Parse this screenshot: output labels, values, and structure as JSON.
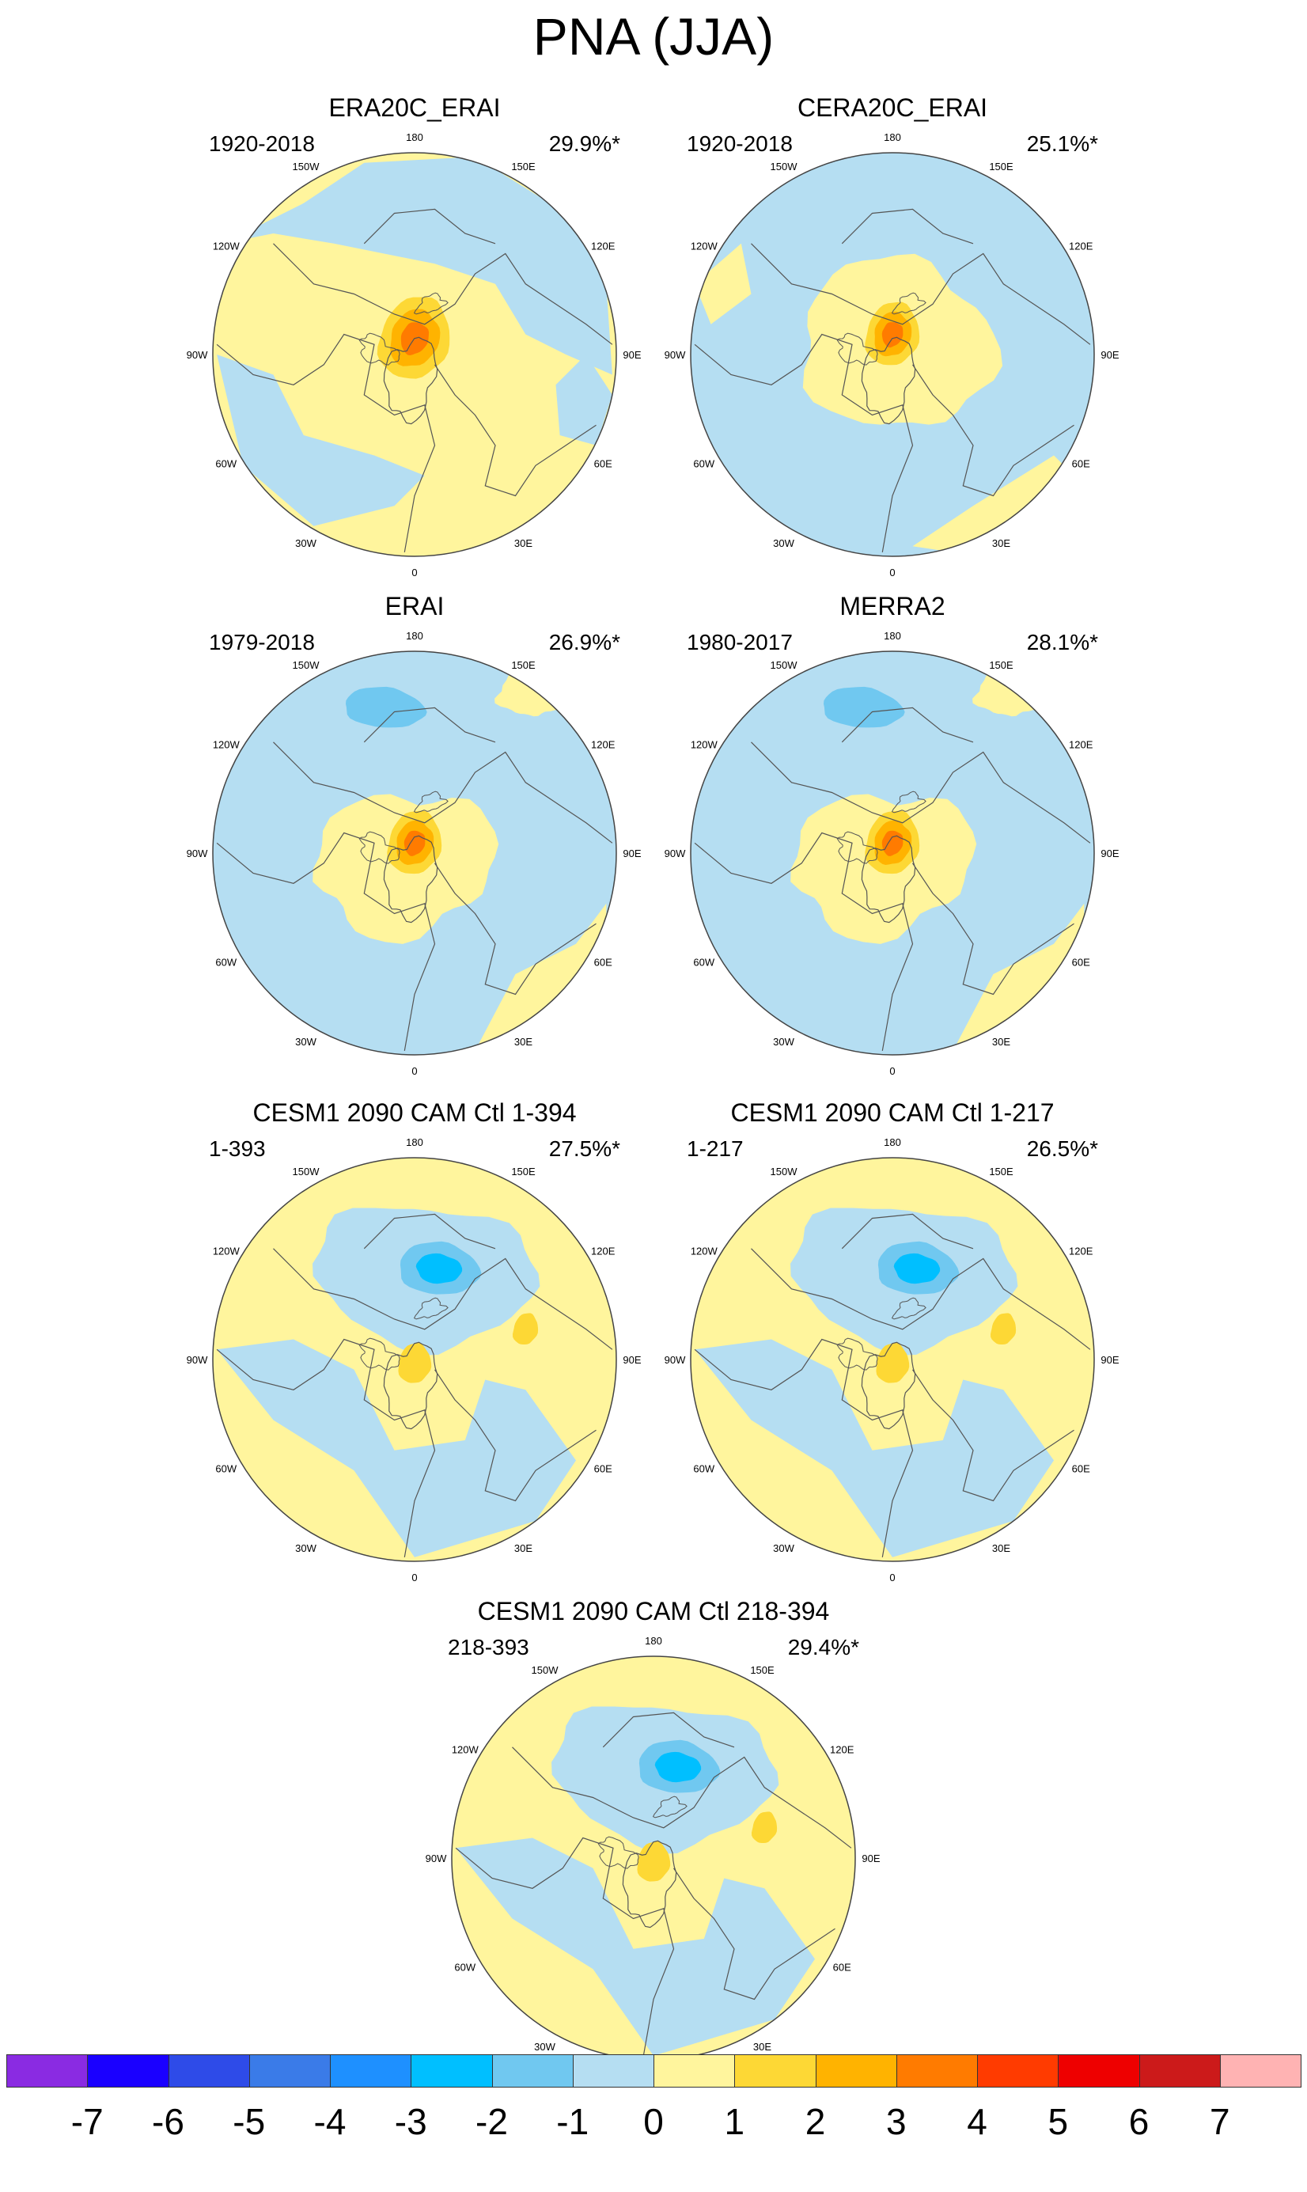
{
  "title": "PNA (JJA)",
  "colors": {
    "land_coast": "#555555",
    "boundary": "#444444",
    "levels": {
      "n4": "#3a7be8",
      "n3": "#00bfff",
      "n2": "#70c8f0",
      "n1": "#b5def2",
      "p1": "#fff59d",
      "p2": "#fdd835",
      "p3": "#ffb300",
      "p4": "#ff7b00",
      "p5": "#ff3b00"
    }
  },
  "longitude_labels": [
    "180",
    "150E",
    "120E",
    "90E",
    "60E",
    "30E",
    "0",
    "30W",
    "60W",
    "90W",
    "120W",
    "150W"
  ],
  "panels": [
    {
      "title": "ERA20C_ERAI",
      "period": "1920-2018",
      "variance": "29.9%*",
      "pattern": "A"
    },
    {
      "title": "CERA20C_ERAI",
      "period": "1920-2018",
      "variance": "25.1%*",
      "pattern": "B"
    },
    {
      "title": "ERAI",
      "period": "1979-2018",
      "variance": "26.9%*",
      "pattern": "C"
    },
    {
      "title": "MERRA2",
      "period": "1980-2017",
      "variance": "28.1%*",
      "pattern": "C"
    },
    {
      "title": "CESM1 2090 CAM Ctl 1-394",
      "period": "1-393",
      "variance": "27.5%*",
      "pattern": "D"
    },
    {
      "title": "CESM1 2090 CAM Ctl 1-217",
      "period": "1-217",
      "variance": "26.5%*",
      "pattern": "D"
    },
    {
      "title": "CESM1 2090 CAM Ctl 218-394",
      "period": "218-393",
      "variance": "29.4%*",
      "pattern": "D"
    }
  ],
  "colorbar": {
    "boxes": [
      "#8a2be2",
      "#1a00ff",
      "#2e4be8",
      "#3a7be8",
      "#1e90ff",
      "#00bfff",
      "#70c8f0",
      "#b5def2",
      "#fff59d",
      "#fdd835",
      "#ffb300",
      "#ff7b00",
      "#ff3b00",
      "#ee0000",
      "#cc1a1a",
      "#ffb3b3"
    ],
    "labels": [
      "-7",
      "-6",
      "-5",
      "-4",
      "-3",
      "-2",
      "-1",
      "0",
      "1",
      "2",
      "3",
      "4",
      "5",
      "6",
      "7"
    ]
  }
}
